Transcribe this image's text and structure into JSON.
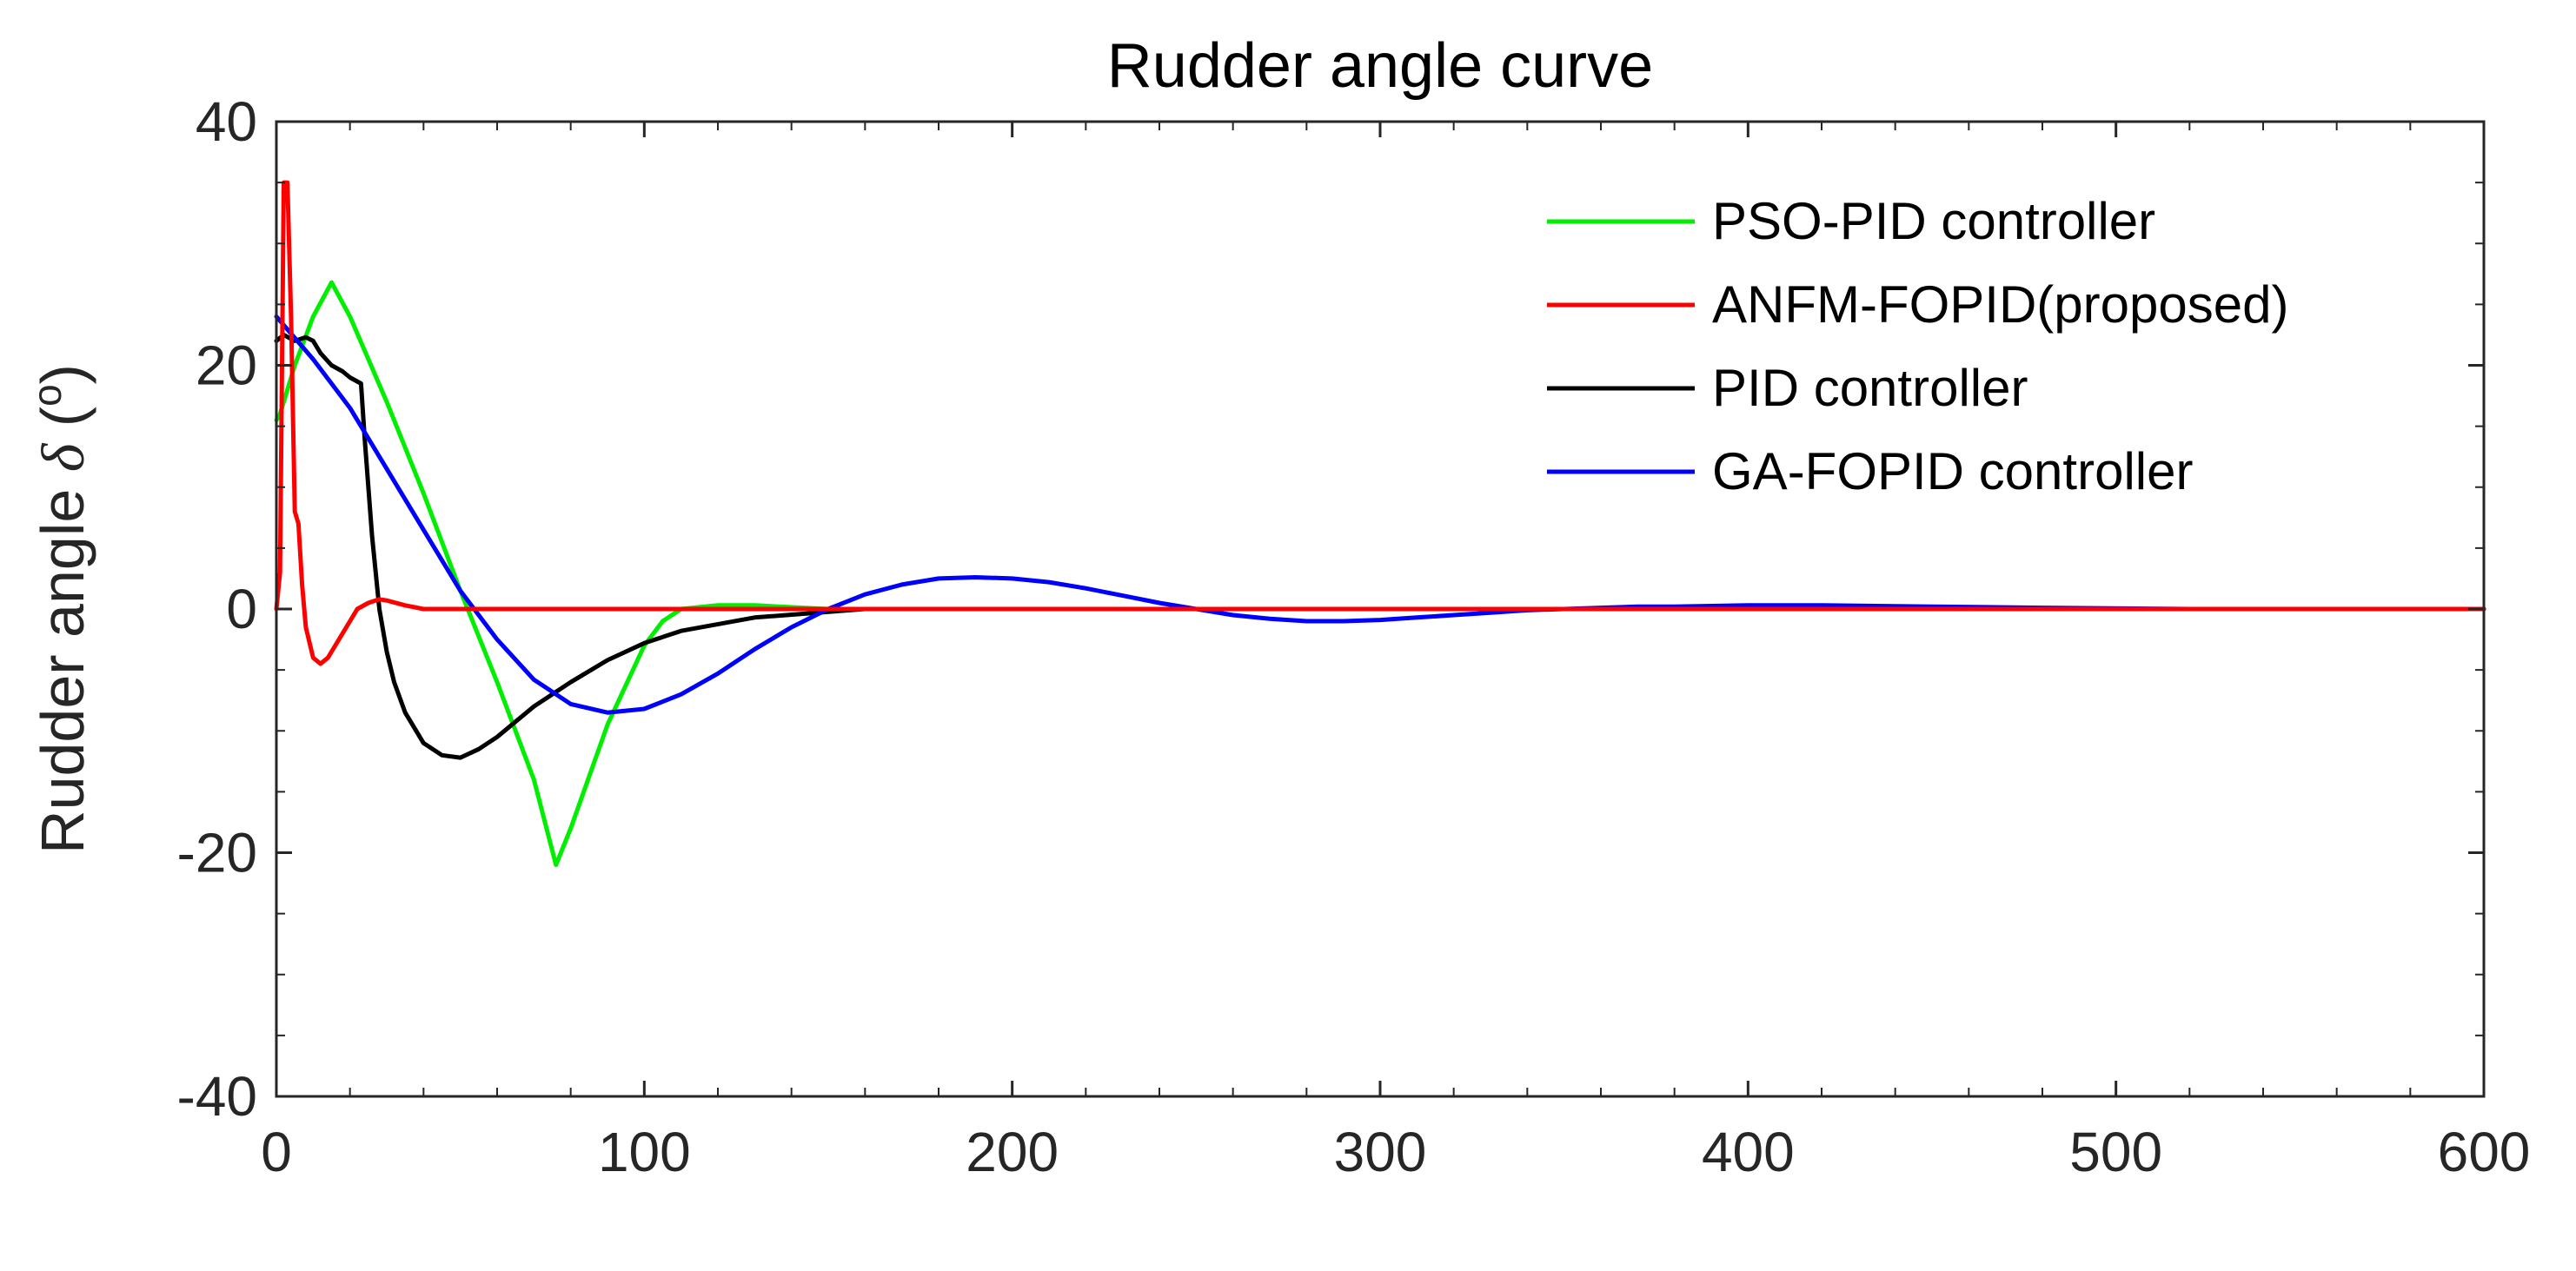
{
  "chart_data": {
    "type": "line",
    "title": "Rudder angle curve",
    "xlabel": "",
    "ylabel": "Rudder angle δ (°)",
    "ylabel_parts": {
      "main": "Rudder angle ",
      "symbol": "δ",
      "open": " (",
      "unit": "o",
      "close": ")"
    },
    "xlim": [
      0,
      600
    ],
    "ylim": [
      -40,
      40
    ],
    "xticks": [
      0,
      100,
      200,
      300,
      400,
      500,
      600
    ],
    "yticks": [
      -40,
      -20,
      0,
      20,
      40
    ],
    "xtick_labels": [
      "0",
      "100",
      "200",
      "300",
      "400",
      "500",
      "600"
    ],
    "ytick_labels": [
      "-40",
      "-20",
      "0",
      "20",
      "40"
    ],
    "grid": false,
    "legend_position": "top-right",
    "series": [
      {
        "name": "PSO-PID controller",
        "color": "#00ee00",
        "x": [
          0,
          1,
          5,
          10,
          15,
          20,
          30,
          40,
          50,
          60,
          70,
          76,
          80,
          90,
          100,
          105,
          110,
          120,
          130,
          150,
          600
        ],
        "y": [
          15.5,
          16,
          20,
          24,
          26.8,
          24,
          17,
          9.5,
          1.5,
          -6,
          -14,
          -21,
          -18,
          -9.5,
          -3,
          -1,
          0,
          0.3,
          0.3,
          0,
          0
        ]
      },
      {
        "name": "ANFM-FOPID(proposed)",
        "color": "#ff0000",
        "x": [
          0,
          1,
          2,
          3,
          4,
          5,
          6,
          7,
          8,
          10,
          12,
          14,
          16,
          18,
          20,
          22,
          25,
          28,
          30,
          35,
          40,
          50,
          600
        ],
        "y": [
          0,
          3,
          35,
          35,
          24,
          8,
          7,
          2,
          -1.5,
          -4,
          -4.5,
          -4,
          -3,
          -2,
          -1,
          0,
          0.5,
          0.8,
          0.7,
          0.3,
          0,
          0,
          0
        ]
      },
      {
        "name": "PID controller",
        "color": "#000000",
        "x": [
          0,
          2,
          5,
          8,
          10,
          12,
          15,
          18,
          20,
          23,
          24,
          26,
          28,
          30,
          32,
          35,
          40,
          45,
          50,
          55,
          60,
          70,
          80,
          90,
          100,
          110,
          130,
          160,
          200,
          600
        ],
        "y": [
          22,
          22.5,
          22,
          22.3,
          22,
          21,
          20,
          19.5,
          19,
          18.5,
          14,
          6,
          0,
          -3.5,
          -6,
          -8.5,
          -11,
          -12,
          -12.2,
          -11.5,
          -10.5,
          -8,
          -6,
          -4.2,
          -2.8,
          -1.8,
          -0.7,
          0,
          0,
          0
        ]
      },
      {
        "name": "GA-FOPID controller",
        "color": "#0000ff",
        "x": [
          0,
          10,
          20,
          30,
          40,
          50,
          60,
          70,
          80,
          90,
          100,
          110,
          120,
          130,
          140,
          150,
          160,
          170,
          180,
          190,
          200,
          210,
          220,
          230,
          240,
          250,
          260,
          270,
          280,
          290,
          300,
          310,
          320,
          330,
          340,
          350,
          360,
          370,
          380,
          390,
          400,
          420,
          450,
          480,
          520,
          600
        ],
        "y": [
          24,
          20.5,
          16.5,
          11.5,
          6.5,
          1.5,
          -2.5,
          -5.8,
          -7.8,
          -8.5,
          -8.2,
          -7,
          -5.3,
          -3.3,
          -1.5,
          0,
          1.2,
          2,
          2.5,
          2.6,
          2.5,
          2.2,
          1.7,
          1.1,
          0.5,
          0,
          -0.5,
          -0.8,
          -1,
          -1,
          -0.9,
          -0.7,
          -0.5,
          -0.3,
          -0.1,
          0,
          0.1,
          0.2,
          0.2,
          0.25,
          0.3,
          0.3,
          0.2,
          0.1,
          0,
          0
        ]
      }
    ]
  }
}
